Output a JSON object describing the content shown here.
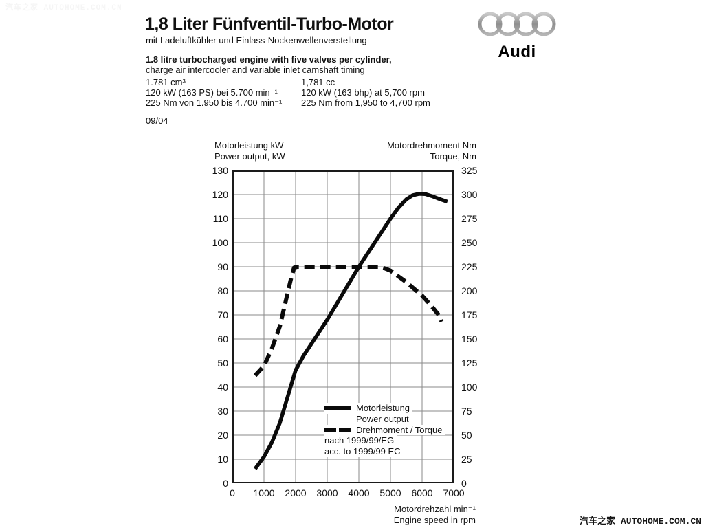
{
  "watermark_top": "汽车之家 AUTOHOME.COM.CN",
  "watermark_bottom": "汽车之家 AUTOHOME.COM.CN",
  "header": {
    "title": "1,8 Liter Fünfventil-Turbo-Motor",
    "subtitle_de": "mit Ladeluftkühler und Einlass-Nockenwellenverstellung",
    "subtitle_en_bold": "1.8 litre turbocharged engine with five valves per cylinder,",
    "subtitle_en": "charge air intercooler and variable inlet camshaft timing",
    "specs_de": [
      "1.781 cm³",
      "120 kW (163 PS) bei 5.700 min⁻¹",
      "225 Nm von 1.950 bis 4.700 min⁻¹"
    ],
    "specs_en": [
      "1,781 cc",
      "120 kW (163 bhp) at 5,700 rpm",
      "225 Nm from 1,950 to 4,700 rpm"
    ],
    "date": "09/04"
  },
  "logo": {
    "brand": "Audi",
    "icon": "audi-four-rings"
  },
  "colors": {
    "curve": "#0a0a0a",
    "grid": "#8a8a8a",
    "plot_border": "#1a1a1a",
    "ring": "#9a9a9a"
  },
  "chart_data": {
    "type": "line",
    "title": "",
    "grid": true,
    "legend_position": "inside-lower-right",
    "left_axis": {
      "label_de": "Motorleistung kW",
      "label_en": "Power output, kW",
      "min": 0,
      "max": 130,
      "tick_step": 10
    },
    "right_axis": {
      "label_de": "Motordrehmoment Nm",
      "label_en": "Torque, Nm",
      "min": 0,
      "max": 325,
      "tick_step": 25
    },
    "x_axis": {
      "label_de": "Motordrehzahl min⁻¹",
      "label_en": "Engine speed in rpm",
      "min": 0,
      "max": 7000,
      "tick_step": 1000
    },
    "series": [
      {
        "name_de": "Motorleistung",
        "name_en": "Power output",
        "axis": "left",
        "line": "solid",
        "unit": "kW",
        "points": [
          [
            720,
            6
          ],
          [
            1000,
            11
          ],
          [
            1250,
            17
          ],
          [
            1500,
            25
          ],
          [
            1750,
            36
          ],
          [
            2000,
            47
          ],
          [
            2250,
            53
          ],
          [
            2500,
            58
          ],
          [
            2750,
            63
          ],
          [
            3000,
            68
          ],
          [
            3250,
            73.5
          ],
          [
            3500,
            79
          ],
          [
            3750,
            84.5
          ],
          [
            4000,
            90
          ],
          [
            4250,
            95
          ],
          [
            4500,
            100
          ],
          [
            4750,
            105
          ],
          [
            5000,
            110
          ],
          [
            5250,
            114.5
          ],
          [
            5500,
            118
          ],
          [
            5700,
            119.7
          ],
          [
            5900,
            120.3
          ],
          [
            6100,
            120.2
          ],
          [
            6300,
            119.4
          ],
          [
            6500,
            118.4
          ],
          [
            6800,
            117
          ]
        ]
      },
      {
        "name": "Drehmoment / Torque",
        "axis": "right",
        "line": "dashed",
        "unit": "Nm",
        "points": [
          [
            720,
            112
          ],
          [
            1000,
            122
          ],
          [
            1250,
            140
          ],
          [
            1500,
            163
          ],
          [
            1750,
            198
          ],
          [
            1850,
            212
          ],
          [
            1950,
            224
          ],
          [
            2050,
            225
          ],
          [
            4650,
            225
          ],
          [
            4850,
            223
          ],
          [
            5000,
            221
          ],
          [
            5250,
            215
          ],
          [
            5500,
            209
          ],
          [
            5750,
            202
          ],
          [
            6000,
            195
          ],
          [
            6250,
            186
          ],
          [
            6500,
            176
          ],
          [
            6620,
            168
          ]
        ]
      }
    ],
    "legend": {
      "note_de": "nach 1999/99/EG",
      "note_en": "acc. to 1999/99 EC"
    }
  }
}
